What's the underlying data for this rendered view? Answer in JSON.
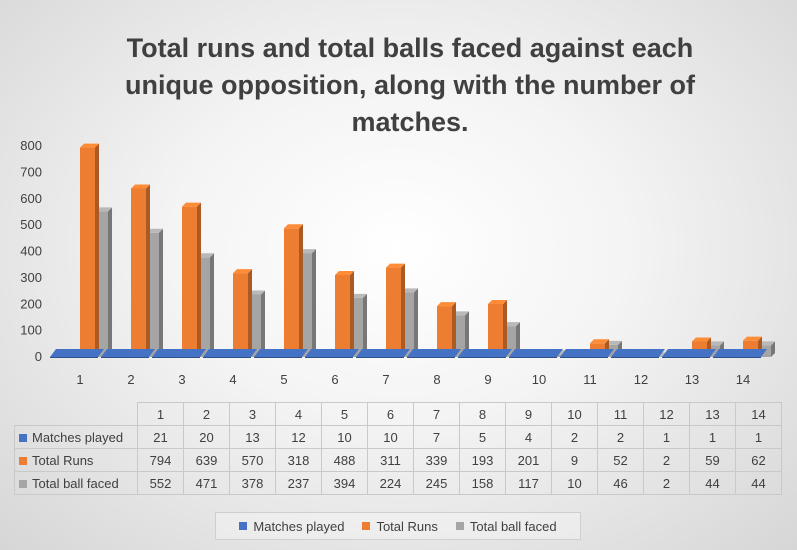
{
  "chart_data": {
    "type": "bar",
    "title": "Total runs and total balls faced against each unique opposition, along with the number of matches.",
    "categories": [
      "1",
      "2",
      "3",
      "4",
      "5",
      "6",
      "7",
      "8",
      "9",
      "10",
      "11",
      "12",
      "13",
      "14"
    ],
    "series": [
      {
        "name": "Matches played",
        "color": "#4472c4",
        "values": [
          21,
          20,
          13,
          12,
          10,
          10,
          7,
          5,
          4,
          2,
          2,
          1,
          1,
          1
        ]
      },
      {
        "name": "Total Runs",
        "color": "#ed7d31",
        "values": [
          794,
          639,
          570,
          318,
          488,
          311,
          339,
          193,
          201,
          9,
          52,
          2,
          59,
          62
        ]
      },
      {
        "name": "Total ball faced",
        "color": "#a5a5a5",
        "values": [
          552,
          471,
          378,
          237,
          394,
          224,
          245,
          158,
          117,
          10,
          46,
          2,
          44,
          44
        ]
      }
    ],
    "yticks": [
      "0",
      "100",
      "200",
      "300",
      "400",
      "500",
      "600",
      "700",
      "800"
    ],
    "ylim": [
      0,
      800
    ],
    "grid": false,
    "legend": "bottom",
    "data_table": true
  }
}
